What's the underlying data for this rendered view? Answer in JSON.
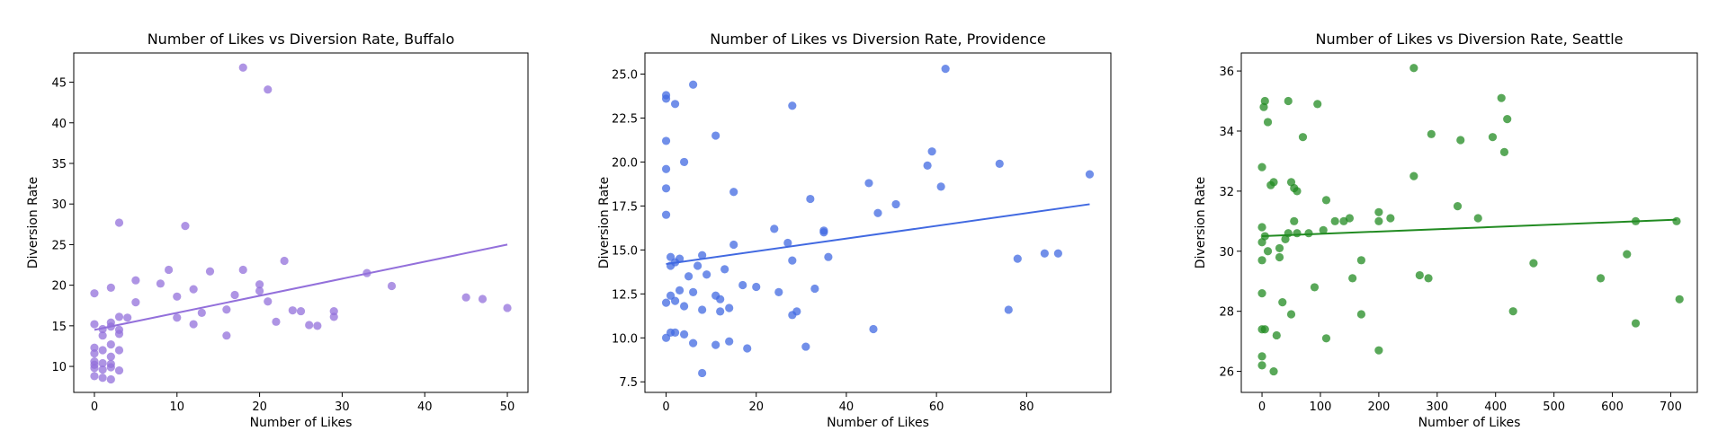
{
  "chart_data": [
    {
      "type": "scatter",
      "title": "Number of Likes vs Diversion Rate, Buffalo",
      "xlabel": "Number of Likes",
      "ylabel": "Diversion Rate",
      "xlim": [
        -2.5,
        52.5
      ],
      "ylim": [
        6.8,
        48.6
      ],
      "xticks": [
        0,
        10,
        20,
        30,
        40,
        50
      ],
      "yticks": [
        10,
        15,
        20,
        25,
        30,
        35,
        40,
        45
      ],
      "color": "#9370db",
      "trend": {
        "x": [
          0,
          50
        ],
        "y": [
          14.5,
          25.0
        ]
      },
      "points": {
        "x": [
          18,
          21,
          3,
          11,
          23,
          9,
          12,
          14,
          18,
          20,
          21,
          25,
          27,
          29,
          33,
          36,
          45,
          47,
          50,
          8,
          10,
          16,
          17,
          20,
          13,
          10,
          12,
          16,
          22,
          24,
          26,
          29,
          5,
          2,
          0,
          1,
          3,
          4,
          2,
          5,
          0,
          3,
          1,
          2,
          0,
          1,
          2,
          3,
          0,
          1,
          2,
          0,
          2,
          0,
          1,
          3,
          0,
          1,
          2,
          0,
          2,
          3
        ],
        "y": [
          46.8,
          44.1,
          27.7,
          27.3,
          23.0,
          21.9,
          19.5,
          21.7,
          21.9,
          20.1,
          18.0,
          16.8,
          15.0,
          16.8,
          21.5,
          19.9,
          18.5,
          18.3,
          17.2,
          20.2,
          18.6,
          17.0,
          18.8,
          19.3,
          16.6,
          16.0,
          15.2,
          13.8,
          15.5,
          16.9,
          15.1,
          16.1,
          20.6,
          19.7,
          19.0,
          14.6,
          16.1,
          16.0,
          15.4,
          17.9,
          15.2,
          14.0,
          13.8,
          12.7,
          12.3,
          12.0,
          11.2,
          12.0,
          11.6,
          10.4,
          10.3,
          10.6,
          9.9,
          9.8,
          9.6,
          9.5,
          8.8,
          8.6,
          8.4,
          10.2,
          14.9,
          14.5
        ]
      }
    },
    {
      "type": "scatter",
      "title": "Number of Likes vs Diversion Rate, Providence",
      "xlabel": "Number of Likes",
      "ylabel": "Diversion Rate",
      "xlim": [
        -4.7,
        98.7
      ],
      "ylim": [
        6.9,
        26.2
      ],
      "xticks": [
        0,
        20,
        40,
        60,
        80
      ],
      "yticks": [
        7.5,
        10.0,
        12.5,
        15.0,
        17.5,
        20.0,
        22.5,
        25.0
      ],
      "color": "#4169e1",
      "trend": {
        "x": [
          0,
          94
        ],
        "y": [
          14.2,
          17.6
        ]
      },
      "points": {
        "x": [
          0,
          0,
          2,
          6,
          28,
          0,
          11,
          0,
          0,
          4,
          15,
          62,
          59,
          58,
          74,
          94,
          45,
          47,
          51,
          61,
          32,
          35,
          35,
          24,
          27,
          28,
          36,
          0,
          1,
          2,
          3,
          1,
          7,
          8,
          9,
          13,
          15,
          5,
          3,
          6,
          11,
          12,
          1,
          0,
          2,
          4,
          8,
          12,
          14,
          17,
          20,
          25,
          29,
          33,
          0,
          1,
          2,
          4,
          6,
          11,
          14,
          18,
          28,
          31,
          8,
          46,
          76,
          78,
          84,
          87
        ],
        "y": [
          23.8,
          23.6,
          23.3,
          24.4,
          23.2,
          21.2,
          21.5,
          19.6,
          18.5,
          20.0,
          18.3,
          25.3,
          20.6,
          19.8,
          19.9,
          19.3,
          18.8,
          17.1,
          17.6,
          18.6,
          17.9,
          16.0,
          16.1,
          16.2,
          15.4,
          14.4,
          14.6,
          17.0,
          14.6,
          14.3,
          14.5,
          14.1,
          14.1,
          14.7,
          13.6,
          13.9,
          15.3,
          13.5,
          12.7,
          12.6,
          12.4,
          12.2,
          12.4,
          12.0,
          12.1,
          11.8,
          11.6,
          11.5,
          11.7,
          13.0,
          12.9,
          12.6,
          11.5,
          12.8,
          10.0,
          10.3,
          10.3,
          10.2,
          9.7,
          9.6,
          9.8,
          9.4,
          11.3,
          9.5,
          8.0,
          10.5,
          11.6,
          14.5,
          14.8,
          14.8
        ]
      }
    },
    {
      "type": "scatter",
      "title": "Number of Likes vs Diversion Rate, Seattle",
      "xlabel": "Number of Likes",
      "ylabel": "Diversion Rate",
      "xlim": [
        -35.5,
        745.5
      ],
      "ylim": [
        25.3,
        36.6
      ],
      "xticks": [
        0,
        100,
        200,
        300,
        400,
        500,
        600,
        700
      ],
      "yticks": [
        26,
        28,
        30,
        32,
        34,
        36
      ],
      "color": "#228b22",
      "trend": {
        "x": [
          0,
          710
        ],
        "y": [
          30.5,
          31.05
        ]
      },
      "points": {
        "x": [
          260,
          410,
          5,
          3,
          45,
          95,
          420,
          10,
          70,
          290,
          340,
          395,
          415,
          0,
          260,
          20,
          15,
          50,
          60,
          55,
          110,
          150,
          200,
          220,
          335,
          370,
          0,
          55,
          125,
          140,
          200,
          5,
          45,
          60,
          40,
          80,
          105,
          0,
          10,
          30,
          0,
          170,
          640,
          710,
          270,
          285,
          465,
          580,
          625,
          30,
          155,
          90,
          0,
          35,
          5,
          50,
          170,
          0,
          25,
          110,
          430,
          715,
          640,
          200,
          0,
          0,
          20
        ],
        "y": [
          36.1,
          35.1,
          35.0,
          34.8,
          35.0,
          34.9,
          34.4,
          34.3,
          33.8,
          33.9,
          33.7,
          33.8,
          33.3,
          32.8,
          32.5,
          32.3,
          32.2,
          32.3,
          32.0,
          32.1,
          31.7,
          31.1,
          31.3,
          31.1,
          31.5,
          31.1,
          30.8,
          31.0,
          31.0,
          31.0,
          31.0,
          30.5,
          30.6,
          30.6,
          30.4,
          30.6,
          30.7,
          30.3,
          30.0,
          30.1,
          29.7,
          29.7,
          31.0,
          31.0,
          29.2,
          29.1,
          29.6,
          29.1,
          29.9,
          29.8,
          29.1,
          28.8,
          28.6,
          28.3,
          27.4,
          27.9,
          27.9,
          27.4,
          27.2,
          27.1,
          28.0,
          28.4,
          27.6,
          26.7,
          26.5,
          26.2,
          26.0
        ]
      }
    }
  ]
}
